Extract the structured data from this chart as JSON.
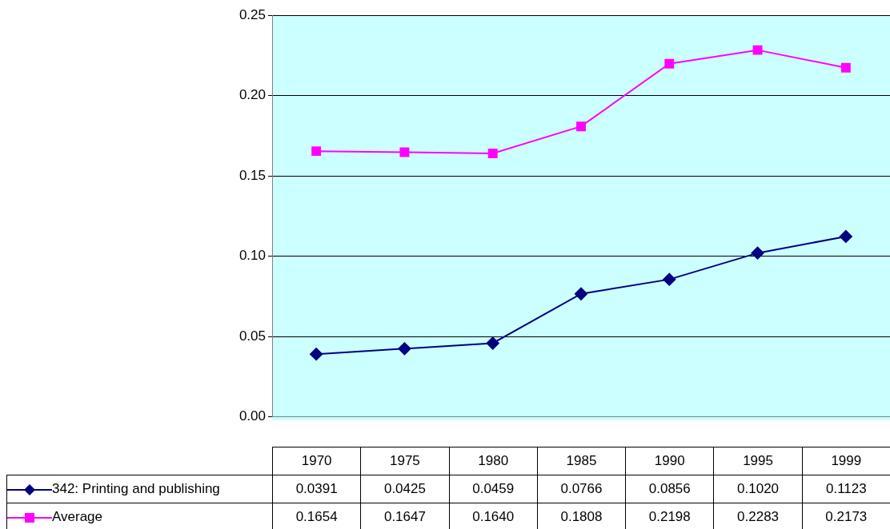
{
  "chart_data": {
    "type": "line",
    "categories": [
      "1970",
      "1975",
      "1980",
      "1985",
      "1990",
      "1995",
      "1999"
    ],
    "series": [
      {
        "name": "342: Printing and publishing",
        "color": "#000080",
        "marker": "diamond",
        "values": [
          0.0391,
          0.0425,
          0.0459,
          0.0766,
          0.0856,
          0.102,
          0.1123
        ],
        "value_labels": [
          "0.0391",
          "0.0425",
          "0.0459",
          "0.0766",
          "0.0856",
          "0.1020",
          "0.1123"
        ]
      },
      {
        "name": "Average",
        "color": "#ff00ff",
        "marker": "square",
        "values": [
          0.1654,
          0.1647,
          0.164,
          0.1808,
          0.2198,
          0.2283,
          0.2173
        ],
        "value_labels": [
          "0.1654",
          "0.1647",
          "0.1640",
          "0.1808",
          "0.2198",
          "0.2283",
          "0.2173"
        ]
      }
    ],
    "ylim": [
      0,
      0.25
    ],
    "yticks": [
      {
        "value": 0,
        "label": "0.00"
      },
      {
        "value": 0.05,
        "label": "0.05"
      },
      {
        "value": 0.1,
        "label": "0.10"
      },
      {
        "value": 0.15,
        "label": "0.15"
      },
      {
        "value": 0.2,
        "label": "0.20"
      },
      {
        "value": 0.25,
        "label": "0.25"
      }
    ],
    "grid": "y",
    "legend": "bottom"
  }
}
